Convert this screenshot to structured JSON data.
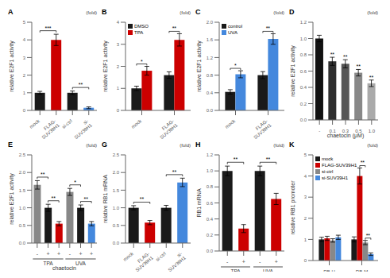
{
  "chart_data": [
    {
      "type": "bar",
      "title": "A",
      "subtitle": "(fold)",
      "categories": [
        "mock",
        "FLAG-\nSUV39H1",
        "si-ctrl",
        "si-\nSUV39H1"
      ],
      "values": [
        1.0,
        4.0,
        1.0,
        0.15
      ],
      "errors": [
        0.08,
        0.32,
        0.1,
        0.05
      ],
      "colors": [
        "#1a1a1a",
        "#cc0000",
        "#1a1a1a",
        "#4488dd"
      ],
      "ylabel": "relative E2F1 activity",
      "ylim": [
        0,
        5
      ],
      "yticks": [
        0,
        1,
        2,
        3,
        4,
        5
      ],
      "annotations": [
        {
          "text": "***",
          "categories": [
            0,
            1
          ]
        },
        {
          "text": "**",
          "categories": [
            2,
            3
          ]
        }
      ]
    },
    {
      "type": "bar",
      "title": "B",
      "subtitle": "(fold)",
      "categories": [
        "mock",
        "FLAG-\nSUV39H1"
      ],
      "series": [
        {
          "name": "DMSO",
          "color": "#1a1a1a",
          "values": [
            1.0,
            1.6
          ],
          "errors": [
            0.1,
            0.15
          ]
        },
        {
          "name": "TPA",
          "color": "#cc0000",
          "values": [
            1.8,
            3.2
          ],
          "errors": [
            0.2,
            0.28
          ]
        }
      ],
      "legend": "upper left",
      "ylabel": "relative E2F1 activity",
      "ylim": [
        0,
        4
      ],
      "yticks": [
        0,
        1,
        2,
        3,
        4
      ],
      "annotations": [
        {
          "text": "*",
          "category": 0,
          "series": [
            0,
            1
          ]
        },
        {
          "text": "**",
          "category": 1,
          "series": [
            0,
            1
          ]
        }
      ]
    },
    {
      "type": "bar",
      "title": "C",
      "subtitle": "(fold)",
      "categories": [
        "mock",
        "FLAG-\nSUV39H1"
      ],
      "series": [
        {
          "name": "control",
          "color": "#1a1a1a",
          "values": [
            0.42,
            0.8
          ],
          "errors": [
            0.05,
            0.08
          ]
        },
        {
          "name": "UVA",
          "color": "#4488dd",
          "values": [
            0.82,
            1.62
          ],
          "errors": [
            0.08,
            0.12
          ]
        }
      ],
      "legend": "upper left",
      "ylabel": "relative E2F1 activity",
      "ylim": [
        0,
        2.0
      ],
      "yticks": [
        {
          "value": 0,
          "label": "0.0"
        },
        0.4,
        0.8,
        1.2,
        1.6,
        {
          "value": 2.0,
          "label": "2.0"
        }
      ],
      "annotations": [
        {
          "text": "*",
          "category": 0,
          "series": [
            0,
            1
          ]
        },
        {
          "text": "**",
          "category": 1,
          "series": [
            0,
            1
          ]
        }
      ]
    },
    {
      "type": "bar",
      "title": "D",
      "subtitle": "(fold)",
      "categories": [
        "-",
        "0.1",
        "0.3",
        "0.5",
        "1.0"
      ],
      "values": [
        1.0,
        0.72,
        0.69,
        0.58,
        0.45
      ],
      "errors": [
        0.04,
        0.05,
        0.05,
        0.04,
        0.04
      ],
      "colors": [
        "#111111",
        "#2e2e2e",
        "#555555",
        "#888888",
        "#aaaaaa"
      ],
      "ylabel": "relative E2F1 activity",
      "xlabel": "chaetocin (μM)",
      "ylim": [
        0,
        1.2
      ],
      "yticks": [
        {
          "value": 0,
          "label": "0.0"
        },
        0.2,
        0.4,
        0.6,
        0.8,
        {
          "value": 1.0,
          "label": "1.0"
        },
        1.2
      ],
      "annotations": [
        {
          "text": "**",
          "category": 1
        },
        {
          "text": "**",
          "category": 2
        },
        {
          "text": "**",
          "category": 3
        },
        {
          "text": "**",
          "category": 4
        }
      ]
    },
    {
      "type": "bar",
      "title": "E",
      "subtitle": "(fold)",
      "categories": [
        "-",
        "+",
        "+",
        "-",
        "+",
        "+"
      ],
      "values": [
        1.65,
        1.0,
        0.55,
        1.45,
        1.0,
        0.55
      ],
      "errors": [
        0.12,
        0.1,
        0.06,
        0.1,
        0.08,
        0.06
      ],
      "colors": [
        "#888888",
        "#1a1a1a",
        "#cc0000",
        "#888888",
        "#1a1a1a",
        "#4488dd"
      ],
      "group_labels": [
        "TPA",
        "UVA"
      ],
      "xlabel": "chaetocin",
      "ylabel": "relative E2F1 activity",
      "ylim": [
        0,
        2.5
      ],
      "yticks": [
        {
          "value": 0,
          "label": "0.0"
        },
        0.5,
        {
          "value": 1.0,
          "label": "1.0"
        },
        1.5,
        {
          "value": 2.0,
          "label": "2.0"
        },
        2.5
      ],
      "annotations": [
        {
          "text": "**",
          "categories": [
            0,
            1
          ]
        },
        {
          "text": "**",
          "categories": [
            1,
            2
          ]
        },
        {
          "text": "*",
          "categories": [
            3,
            4
          ]
        },
        {
          "text": "**",
          "categories": [
            4,
            5
          ]
        }
      ]
    },
    {
      "type": "bar",
      "title": "G",
      "subtitle": "(fold)",
      "categories": [
        "mock",
        "FLAG-\nSUV39H1",
        "si-ctrl",
        "si-\nSUV39H1"
      ],
      "values": [
        1.0,
        0.58,
        1.0,
        1.72
      ],
      "errors": [
        0.06,
        0.06,
        0.07,
        0.12
      ],
      "colors": [
        "#1a1a1a",
        "#cc0000",
        "#1a1a1a",
        "#4488dd"
      ],
      "ylabel": "relative RB1 mRNA",
      "ylim": [
        0,
        2.5
      ],
      "yticks": [
        {
          "value": 0,
          "label": "0.0"
        },
        0.5,
        {
          "value": 1.0,
          "label": "1.0"
        },
        1.5,
        {
          "value": 2.0,
          "label": "2.0"
        },
        2.5
      ],
      "annotations": [
        {
          "text": "**",
          "categories": [
            0,
            1
          ]
        },
        {
          "text": "**",
          "categories": [
            2,
            3
          ]
        }
      ]
    },
    {
      "type": "bar",
      "title": "H",
      "subtitle": "(fold)",
      "categories": [
        "-",
        "+",
        "-",
        "+"
      ],
      "values": [
        1.0,
        0.28,
        1.0,
        0.65
      ],
      "errors": [
        0.06,
        0.05,
        0.06,
        0.07
      ],
      "colors": [
        "#1a1a1a",
        "#cc0000",
        "#1a1a1a",
        "#cc0000"
      ],
      "group_labels": [
        "TPA",
        "UVA"
      ],
      "ylabel": "RB1 mRNA",
      "ylim": [
        0,
        1.2
      ],
      "yticks": [
        {
          "value": 0,
          "label": "0.0"
        },
        0.2,
        0.4,
        0.6,
        0.8,
        {
          "value": 1.0,
          "label": "1.0"
        },
        1.2
      ],
      "annotations": [
        {
          "text": "**",
          "categories": [
            0,
            1
          ]
        },
        {
          "text": "**",
          "categories": [
            2,
            3
          ]
        }
      ]
    },
    {
      "type": "bar",
      "title": "K",
      "subtitle": "(fold)",
      "categories": [
        "RB-U",
        "RB-M"
      ],
      "series": [
        {
          "name": "mock",
          "color": "#1a1a1a",
          "values": [
            1.0,
            1.0
          ],
          "errors": [
            0.1,
            0.12
          ]
        },
        {
          "name": "FLAG-SUV39H1",
          "color": "#cc0000",
          "values": [
            1.05,
            4.0
          ],
          "errors": [
            0.1,
            0.38
          ]
        },
        {
          "name": "si-ctrl",
          "color": "#888888",
          "values": [
            0.95,
            0.85
          ],
          "errors": [
            0.08,
            0.1
          ]
        },
        {
          "name": "si-SUV39H1",
          "color": "#4488dd",
          "values": [
            1.1,
            0.3
          ],
          "errors": [
            0.1,
            0.06
          ]
        }
      ],
      "legend": "upper left",
      "ylabel": "relative RB1 promoter",
      "ylim": [
        0,
        5
      ],
      "yticks": [
        0,
        1,
        2,
        3,
        4,
        5
      ],
      "annotations": [
        {
          "text": "**",
          "category": 1,
          "series": [
            1,
            2
          ]
        },
        {
          "text": "**",
          "category": 1,
          "series": [
            2,
            3
          ]
        }
      ]
    }
  ]
}
